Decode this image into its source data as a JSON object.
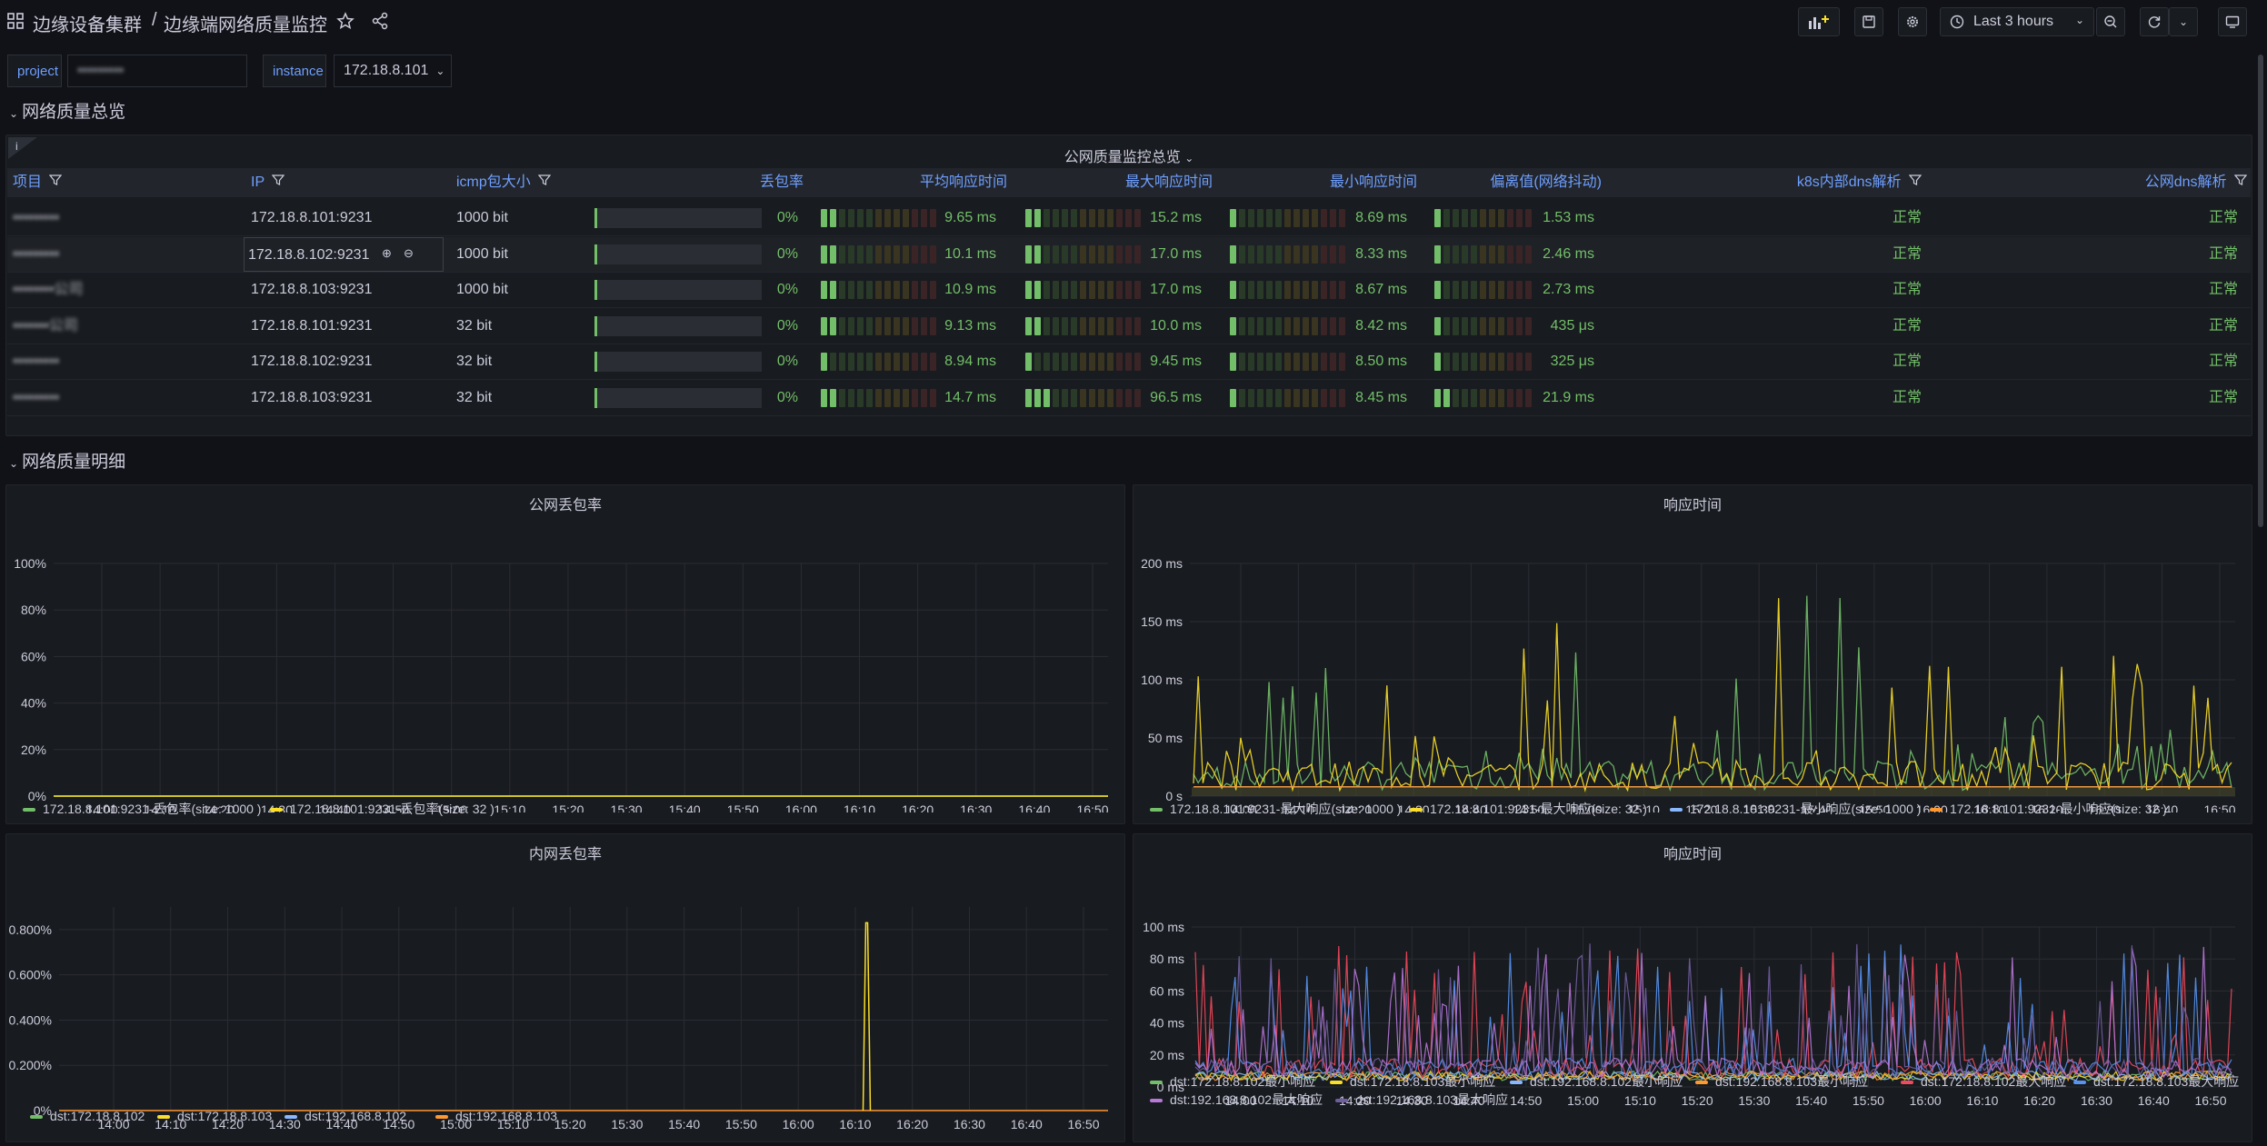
{
  "topbar": {
    "folder": "边缘设备集群",
    "separator": "/",
    "title": "边缘端网络质量监控",
    "time_range": "Last 3 hours"
  },
  "variables": [
    {
      "label": "project",
      "value": "▪▪▪▪▪▪▪▪▪"
    },
    {
      "label": "instance",
      "value": "172.18.8.101"
    }
  ],
  "rows": {
    "overview": "网络质量总览",
    "detail": "网络质量明细"
  },
  "table": {
    "title": "公网质量监控总览",
    "headers": [
      "项目",
      "IP",
      "icmp包大小",
      "丢包率",
      "平均响应时间",
      "最大响应时间",
      "最小响应时间",
      "偏离值(网络抖动)",
      "k8s内部dns解析",
      "公网dns解析"
    ],
    "rows": [
      {
        "project": "▪▪▪▪▪▪▪▪▪",
        "ip": "172.18.8.101:9231",
        "size": "1000 bit",
        "loss": "0%",
        "avg": "9.65 ms",
        "max": "15.2 ms",
        "min": "8.69 ms",
        "dev": "1.53 ms",
        "k8s": "正常",
        "pub": "正常",
        "avg_level": 0.12,
        "max_level": 0.15,
        "min_level": 0.1,
        "dev_level": 0.1
      },
      {
        "project": "▪▪▪▪▪▪▪▪▪",
        "ip": "172.18.8.102:9231",
        "size": "1000 bit",
        "loss": "0%",
        "avg": "10.1 ms",
        "max": "17.0 ms",
        "min": "8.33 ms",
        "dev": "2.46 ms",
        "k8s": "正常",
        "pub": "正常",
        "avg_level": 0.12,
        "max_level": 0.15,
        "min_level": 0.1,
        "dev_level": 0.1
      },
      {
        "project": "▪▪▪▪▪▪▪▪公司",
        "ip": "172.18.8.103:9231",
        "size": "1000 bit",
        "loss": "0%",
        "avg": "10.9 ms",
        "max": "17.0 ms",
        "min": "8.67 ms",
        "dev": "2.73 ms",
        "k8s": "正常",
        "pub": "正常",
        "avg_level": 0.12,
        "max_level": 0.15,
        "min_level": 0.1,
        "dev_level": 0.1
      },
      {
        "project": "▪▪▪▪▪▪▪公司",
        "ip": "172.18.8.101:9231",
        "size": "32 bit",
        "loss": "0%",
        "avg": "9.13 ms",
        "max": "10.0 ms",
        "min": "8.42 ms",
        "dev": "435 μs",
        "k8s": "正常",
        "pub": "正常",
        "avg_level": 0.12,
        "max_level": 0.12,
        "min_level": 0.1,
        "dev_level": 0.05
      },
      {
        "project": "▪▪▪▪▪▪▪▪▪",
        "ip": "172.18.8.102:9231",
        "size": "32 bit",
        "loss": "0%",
        "avg": "8.94 ms",
        "max": "9.45 ms",
        "min": "8.50 ms",
        "dev": "325 μs",
        "k8s": "正常",
        "pub": "正常",
        "avg_level": 0.1,
        "max_level": 0.1,
        "min_level": 0.1,
        "dev_level": 0.05
      },
      {
        "project": "▪▪▪▪▪▪▪▪▪",
        "ip": "172.18.8.103:9231",
        "size": "32 bit",
        "loss": "0%",
        "avg": "14.7 ms",
        "max": "96.5 ms",
        "min": "8.45 ms",
        "dev": "21.9 ms",
        "k8s": "正常",
        "pub": "正常",
        "avg_level": 0.15,
        "max_level": 0.25,
        "min_level": 0.1,
        "dev_level": 0.2
      }
    ]
  },
  "panels": {
    "public_loss_title": "公网丢包率",
    "resp1_title": "响应时间",
    "internal_loss_title": "内网丢包率",
    "resp2_title": "响应时间"
  },
  "chart_data": [
    {
      "type": "line",
      "title": "公网丢包率",
      "x": [
        "14:00",
        "14:10",
        "14:20",
        "14:30",
        "14:40",
        "14:50",
        "15:00",
        "15:10",
        "15:20",
        "15:30",
        "15:40",
        "15:50",
        "16:00",
        "16:10",
        "16:20",
        "16:30",
        "16:40",
        "16:50"
      ],
      "yticks": [
        "0%",
        "20%",
        "40%",
        "60%",
        "80%",
        "100%"
      ],
      "ylim": [
        0,
        100
      ],
      "series": [
        {
          "name": "172.18.8.101:9231-丢包率(size: 1000 )",
          "color": "#73bf69",
          "values": [
            0,
            0,
            0,
            0,
            0,
            0,
            0,
            0,
            0,
            0,
            0,
            0,
            0,
            0,
            0,
            0,
            0,
            0
          ]
        },
        {
          "name": "172.18.8.101:9231-丢包率(size: 32 )",
          "color": "#fade2a",
          "values": [
            0,
            0,
            0,
            0,
            0,
            0,
            0,
            0,
            0,
            0,
            0,
            0,
            0,
            0,
            0,
            0,
            0,
            0
          ]
        }
      ]
    },
    {
      "type": "line",
      "title": "响应时间",
      "x": [
        "14:00",
        "14:10",
        "14:20",
        "14:30",
        "14:40",
        "14:50",
        "15:00",
        "15:10",
        "15:20",
        "15:30",
        "15:40",
        "15:50",
        "16:00",
        "16:10",
        "16:20",
        "16:30",
        "16:40",
        "16:50"
      ],
      "yticks": [
        "0 s",
        "50 ms",
        "100 ms",
        "150 ms",
        "200 ms"
      ],
      "ylim": [
        0,
        200
      ],
      "series": [
        {
          "name": "172.18.8.101:9231-最大响应(size: 1000 )",
          "color": "#73bf69",
          "values": [
            20,
            90,
            160,
            30,
            60,
            40,
            120,
            30,
            110,
            40,
            190,
            60,
            60,
            110,
            30,
            60,
            40,
            170
          ]
        },
        {
          "name": "172.18.8.101:9231-最大响应(size: 32 )",
          "color": "#fade2a",
          "values": [
            95,
            30,
            150,
            100,
            40,
            150,
            20,
            130,
            50,
            180,
            40,
            170,
            110,
            50,
            120,
            150,
            90,
            140
          ]
        },
        {
          "name": "172.18.8.101:9231-最小响应(size: 1000 )",
          "color": "#8ab8ff",
          "values": [
            8,
            8,
            8,
            8,
            8,
            8,
            8,
            8,
            8,
            8,
            8,
            8,
            8,
            8,
            8,
            8,
            8,
            8
          ]
        },
        {
          "name": "172.18.8.101:9231-最小响应(size: 32 )",
          "color": "#ff9830",
          "values": [
            8,
            8,
            8,
            8,
            8,
            8,
            8,
            8,
            8,
            8,
            8,
            8,
            8,
            8,
            8,
            8,
            8,
            8
          ]
        }
      ]
    },
    {
      "type": "line",
      "title": "内网丢包率",
      "x": [
        "14:00",
        "14:10",
        "14:20",
        "14:30",
        "14:40",
        "14:50",
        "15:00",
        "15:10",
        "15:20",
        "15:30",
        "15:40",
        "15:50",
        "16:00",
        "16:10",
        "16:20",
        "16:30",
        "16:40",
        "16:50"
      ],
      "yticks": [
        "0%",
        "0.200%",
        "0.400%",
        "0.600%",
        "0.800%"
      ],
      "ylim": [
        0,
        0.9
      ],
      "spike": {
        "x": "16:12",
        "value": 0.83
      },
      "series": [
        {
          "name": "dst:172.18.8.102",
          "color": "#73bf69"
        },
        {
          "name": "dst:172.18.8.103",
          "color": "#fade2a"
        },
        {
          "name": "dst:192.168.8.102",
          "color": "#8ab8ff"
        },
        {
          "name": "dst:192.168.8.103",
          "color": "#ff9830"
        }
      ]
    },
    {
      "type": "line",
      "title": "响应时间",
      "x": [
        "14:00",
        "14:10",
        "14:20",
        "14:30",
        "14:40",
        "14:50",
        "15:00",
        "15:10",
        "15:20",
        "15:30",
        "15:40",
        "15:50",
        "16:00",
        "16:10",
        "16:20",
        "16:30",
        "16:40",
        "16:50"
      ],
      "yticks": [
        "0 ms",
        "20 ms",
        "40 ms",
        "60 ms",
        "80 ms",
        "100 ms"
      ],
      "ylim": [
        0,
        100
      ],
      "series": [
        {
          "name": "dst:172.18.8.102最小响应",
          "color": "#73bf69"
        },
        {
          "name": "dst:172.18.8.103最小响应",
          "color": "#fade2a"
        },
        {
          "name": "dst:192.168.8.102最小响应",
          "color": "#8ab8ff"
        },
        {
          "name": "dst:192.168.8.103最小响应",
          "color": "#ff9830"
        },
        {
          "name": "dst:172.18.8.102最大响应",
          "color": "#f2495c"
        },
        {
          "name": "dst:172.18.8.103最大响应",
          "color": "#5794f2"
        },
        {
          "name": "dst:192.168.8.102最大响应",
          "color": "#b877d9"
        },
        {
          "name": "dst:192.168.8.103最大响应",
          "color": "#705da0"
        }
      ]
    }
  ]
}
